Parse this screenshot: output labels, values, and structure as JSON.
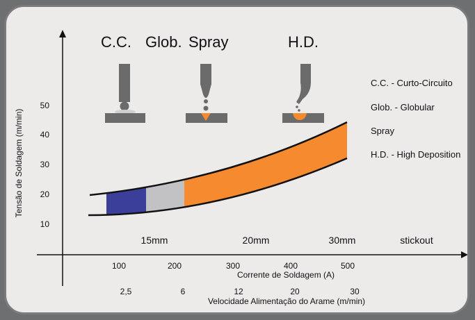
{
  "processes": {
    "cc": "C.C.",
    "glob": "Glob.",
    "spray": "Spray",
    "hd": "H.D."
  },
  "legend": [
    "C.C. - Curto-Circuito",
    "Glob. - Globular",
    "Spray",
    "H.D. - High Deposition"
  ],
  "y_axis": {
    "label": "Tensão de Soldagem (m/min)",
    "ticks": [
      "10",
      "20",
      "30",
      "40",
      "50"
    ]
  },
  "x_axis": {
    "current_label": "Corrente de Soldagem (A)",
    "current_ticks": [
      "100",
      "200",
      "300",
      "400",
      "500"
    ],
    "speed_label": "Velocidade Alimentação do Arame (m/min)",
    "speed_ticks": [
      "2,5",
      "6",
      "12",
      "20",
      "30"
    ]
  },
  "stickout": {
    "values": [
      "15mm",
      "20mm",
      "30mm"
    ],
    "label": "stickout"
  },
  "colors": {
    "background": "#6e6f71",
    "panel": "#ecebea",
    "cc_region": "#3b3f9a",
    "glob_region": "#c2c2c4",
    "spray_region": "#f58a2e",
    "metal": "#6b6b6b",
    "weld_pool": "#f58a2e"
  },
  "chart_data": {
    "type": "area",
    "regions": [
      {
        "name": "C.C.",
        "color": "#3b3f9a"
      },
      {
        "name": "Glob.",
        "color": "#c2c2c4"
      },
      {
        "name": "Spray",
        "color": "#f58a2e"
      }
    ]
  }
}
